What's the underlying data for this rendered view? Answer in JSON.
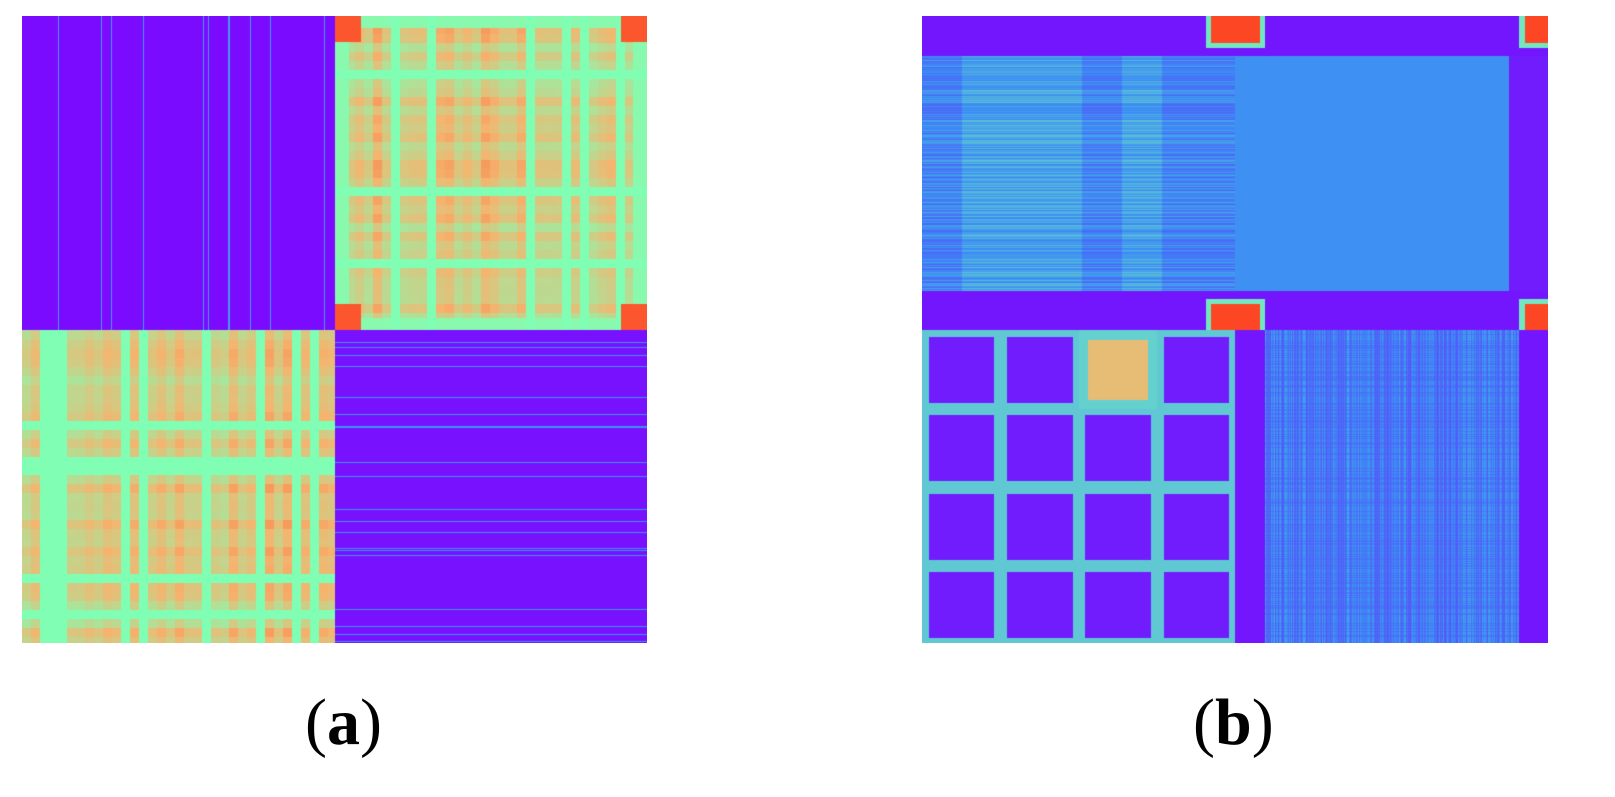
{
  "chart_data": [
    {
      "type": "heatmap",
      "panel_label": "a",
      "blocks": [
        {
          "position": "top-left",
          "level": "low",
          "pattern": "vertical-lines"
        },
        {
          "position": "top-right",
          "level": "high",
          "pattern": "checkered",
          "corner_peaks": true
        },
        {
          "position": "bottom-left",
          "level": "high",
          "pattern": "checkered"
        },
        {
          "position": "bottom-right",
          "level": "low",
          "pattern": "horizontal-lines"
        }
      ]
    },
    {
      "type": "heatmap",
      "panel_label": "b",
      "blocks": [
        {
          "position": "top-left",
          "level": "low-medium",
          "pattern": "horizontal-streaks",
          "corner_peaks": true
        },
        {
          "position": "top-right",
          "level": "low-medium",
          "pattern": "uniform",
          "corner_peaks": true
        },
        {
          "position": "bottom-left",
          "level": "mixed",
          "pattern": "grid-cells",
          "peak_cell": true
        },
        {
          "position": "bottom-right",
          "level": "low-medium",
          "pattern": "vertical-streaks"
        }
      ]
    }
  ],
  "colormap": [
    "#7f00ff",
    "#3b8cf5",
    "#80ffb4",
    "#f5b46e",
    "#ff2a10"
  ],
  "captions": {
    "a": {
      "open": "(",
      "letter": "a",
      "close": ")"
    },
    "b": {
      "open": "(",
      "letter": "b",
      "close": ")"
    }
  }
}
